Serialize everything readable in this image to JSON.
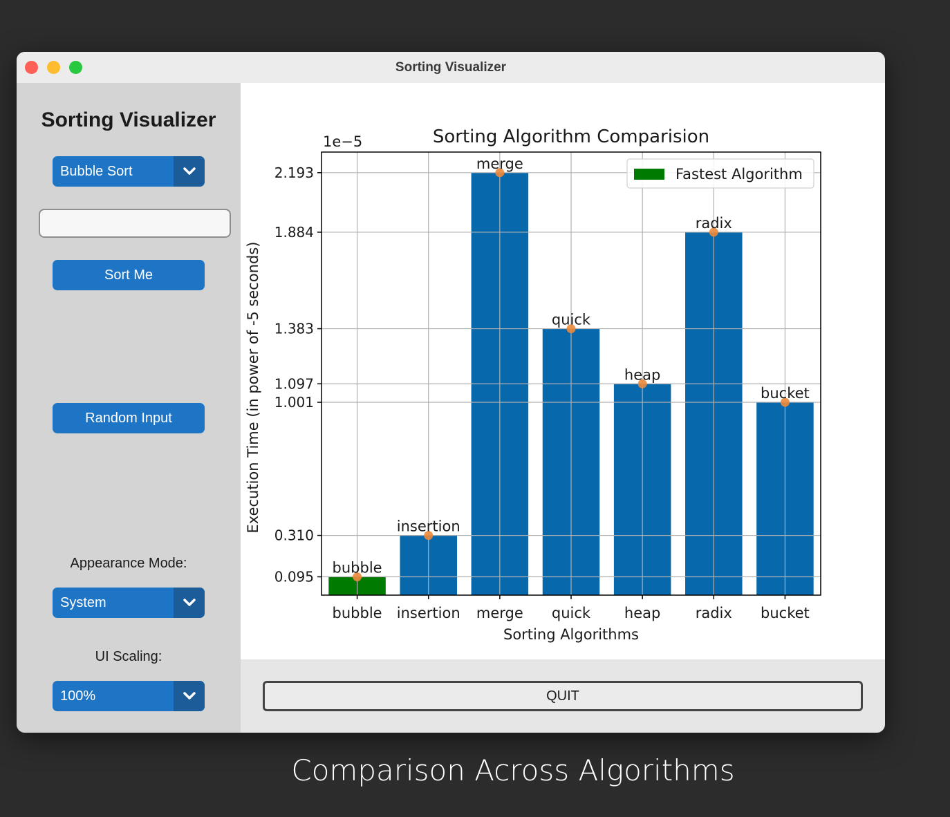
{
  "window": {
    "title": "Sorting Visualizer"
  },
  "sidebar": {
    "title": "Sorting Visualizer",
    "algorithm_select": {
      "value": "Bubble Sort"
    },
    "input_field": {
      "value": "",
      "placeholder": ""
    },
    "sort_button": "Sort Me",
    "random_button": "Random Input",
    "appearance_label": "Appearance Mode:",
    "appearance_select": {
      "value": "System"
    },
    "scaling_label": "UI Scaling:",
    "scaling_select": {
      "value": "100%"
    }
  },
  "quit_button": "QUIT",
  "caption": "Comparison Across Algorithms",
  "colors": {
    "bar": "#0868ac",
    "fastest_bar": "#007a00",
    "marker": "#ec8a3c",
    "accent_button": "#1f75c5"
  },
  "icons": {
    "dropdown_arrow": "chevron-down-icon"
  },
  "chart_data": {
    "type": "bar",
    "title": "Sorting Algorithm Comparision",
    "xlabel": "Sorting Algorithms",
    "ylabel": "Execution Time (in power of -5 seconds)",
    "offset_label": "1e−5",
    "categories": [
      "bubble",
      "insertion",
      "merge",
      "quick",
      "heap",
      "radix",
      "bucket"
    ],
    "values": [
      0.095,
      0.31,
      2.193,
      1.383,
      1.097,
      1.884,
      1.001
    ],
    "bar_labels": [
      "bubble",
      "insertion",
      "merge",
      "quick",
      "heap",
      "radix",
      "bucket"
    ],
    "ytick_labels": [
      "0.095",
      "0.310",
      "1.001",
      "1.097",
      "1.383",
      "1.884",
      "2.193"
    ],
    "fastest_index": 0,
    "legend": {
      "entries": [
        "Fastest Algorithm"
      ],
      "placement": "top-right"
    },
    "grid": true,
    "ylim": [
      0.0,
      2.3
    ]
  }
}
